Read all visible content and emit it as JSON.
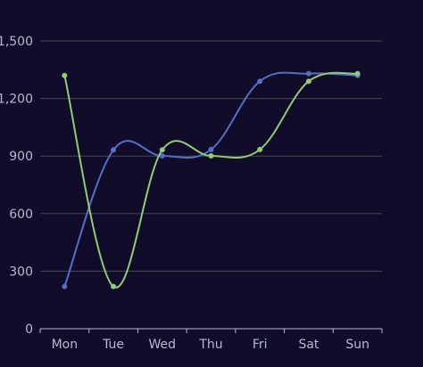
{
  "chart_data": {
    "type": "line",
    "categories": [
      "Mon",
      "Tue",
      "Wed",
      "Thu",
      "Fri",
      "Sat",
      "Sun"
    ],
    "ylim": [
      0,
      1500
    ],
    "yticks": [
      "0",
      "300",
      "600",
      "900",
      "1,200",
      "1,500"
    ],
    "ytick_values": [
      0,
      300,
      600,
      900,
      1200,
      1500
    ],
    "grid": true,
    "smooth": true,
    "series": [
      {
        "values": [
          220,
          932,
          901,
          934,
          1290,
          1330,
          1320
        ],
        "color": "#5470c6"
      },
      {
        "values": [
          1320,
          220,
          932,
          901,
          934,
          1290,
          1330
        ],
        "color": "#91cc75"
      }
    ]
  }
}
